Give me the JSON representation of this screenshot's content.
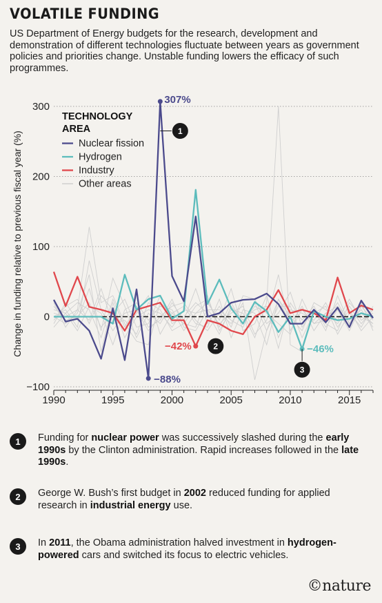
{
  "title": "VOLATILE FUNDING",
  "subtitle": "US Department of Energy budgets for the research, development and demonstration of different technologies fluctuate between years as government policies and priorities change. Unstable funding lowers the efficacy of such programmes.",
  "chart_data": {
    "type": "line",
    "ylabel": "Change in funding relative to previous fiscal year (%)",
    "ylim": [
      -100,
      310
    ],
    "xlim": [
      1990,
      2017
    ],
    "yticks": [
      -100,
      0,
      100,
      200,
      300
    ],
    "yticklabels": [
      "−100",
      "0",
      "100",
      "200",
      "300"
    ],
    "xticks": [
      1990,
      1995,
      2000,
      2005,
      2010,
      2015
    ],
    "grid": "dotted horizontal",
    "legend": {
      "title_line1": "TECHNOLOGY",
      "title_line2": "AREA",
      "placement": "top-left"
    },
    "series": [
      {
        "name": "Nuclear fission",
        "color": "#4b4a8c",
        "x": [
          1990,
          1991,
          1992,
          1993,
          1994,
          1995,
          1996,
          1997,
          1998,
          1999,
          2000,
          2001,
          2002,
          2003,
          2004,
          2005,
          2006,
          2007,
          2008,
          2009,
          2010,
          2011,
          2012,
          2013,
          2014,
          2015,
          2016,
          2017
        ],
        "y": [
          24,
          -7,
          -3,
          -20,
          -60,
          12,
          -62,
          39,
          -88,
          307,
          58,
          22,
          143,
          0,
          5,
          20,
          24,
          25,
          33,
          18,
          -10,
          -10,
          10,
          -8,
          13,
          -15,
          23,
          -2
        ]
      },
      {
        "name": "Hydrogen",
        "color": "#5cbcbc",
        "x": [
          1990,
          1991,
          1992,
          1993,
          1994,
          1995,
          1996,
          1997,
          1998,
          1999,
          2000,
          2001,
          2002,
          2003,
          2004,
          2005,
          2006,
          2007,
          2008,
          2009,
          2010,
          2011,
          2012,
          2013,
          2014,
          2015,
          2016,
          2017
        ],
        "y": [
          0,
          0,
          0,
          0,
          0,
          -10,
          60,
          10,
          25,
          30,
          -3,
          8,
          181,
          18,
          53,
          12,
          -10,
          21,
          8,
          -22,
          0,
          -46,
          8,
          0,
          -5,
          -3,
          5,
          0
        ]
      },
      {
        "name": "Industry",
        "color": "#e0474c",
        "x": [
          1990,
          1991,
          1992,
          1993,
          1994,
          1995,
          1996,
          1997,
          1998,
          1999,
          2000,
          2001,
          2002,
          2003,
          2004,
          2005,
          2006,
          2007,
          2008,
          2009,
          2010,
          2011,
          2012,
          2013,
          2014,
          2015,
          2016,
          2017
        ],
        "y": [
          64,
          15,
          57,
          14,
          10,
          5,
          -20,
          10,
          15,
          20,
          -5,
          -5,
          -42,
          -5,
          -10,
          -20,
          -25,
          0,
          10,
          38,
          5,
          10,
          5,
          -5,
          56,
          5,
          16,
          10
        ]
      }
    ],
    "other_areas": {
      "name": "Other areas",
      "color": "#cfcfcf",
      "series": [
        [
          5,
          0,
          10,
          128,
          20,
          30,
          -10,
          -35,
          -40,
          20,
          5,
          -10,
          -15,
          30,
          -20,
          10,
          5,
          -30,
          20,
          300,
          -40,
          -50,
          10,
          -20,
          30,
          -10,
          5,
          -10
        ],
        [
          -10,
          20,
          -5,
          40,
          -20,
          55,
          15,
          -30,
          5,
          -10,
          20,
          -5,
          40,
          -10,
          15,
          -15,
          30,
          25,
          -10,
          5,
          35,
          -15,
          10,
          -10,
          -20,
          20,
          0,
          -10
        ],
        [
          0,
          -10,
          5,
          60,
          -50,
          20,
          -30,
          0,
          10,
          5,
          -15,
          10,
          5,
          20,
          -5,
          40,
          -20,
          -10,
          30,
          -30,
          10,
          5,
          -5,
          20,
          -15,
          10,
          -20,
          0
        ],
        [
          10,
          5,
          -20,
          15,
          5,
          -40,
          10,
          20,
          -5,
          15,
          10,
          -20,
          5,
          10,
          -10,
          5,
          15,
          -25,
          -5,
          60,
          -20,
          10,
          -10,
          5,
          15,
          -5,
          10,
          -15
        ],
        [
          -5,
          15,
          25,
          -10,
          30,
          10,
          -20,
          5,
          30,
          -25,
          5,
          15,
          -10,
          -15,
          25,
          -30,
          10,
          5,
          -40,
          25,
          0,
          -20,
          20,
          10,
          -5,
          25,
          -5,
          5
        ],
        [
          15,
          -5,
          0,
          20,
          -15,
          5,
          25,
          -15,
          -10,
          30,
          -10,
          0,
          20,
          5,
          -25,
          15,
          -5,
          10,
          15,
          -45,
          20,
          -5,
          15,
          -15,
          10,
          -20,
          15,
          -5
        ],
        [
          0,
          10,
          -15,
          80,
          10,
          -20,
          5,
          10,
          -20,
          0,
          15,
          20,
          -5,
          -20,
          5,
          -10,
          20,
          -90,
          -20,
          25,
          -10,
          15,
          -20,
          5,
          -10,
          15,
          -10,
          10
        ],
        [
          20,
          -15,
          10,
          -5,
          40,
          -10,
          -5,
          -25,
          20,
          10,
          -20,
          -10,
          15,
          25,
          -15,
          20,
          -10,
          15,
          5,
          -10,
          -25,
          25,
          -10,
          -5,
          20,
          -10,
          20,
          -20
        ],
        [
          -15,
          5,
          20,
          10,
          -30,
          25,
          -15,
          15,
          -15,
          -5,
          25,
          -15,
          -20,
          10,
          10,
          -5,
          -15,
          20,
          -20,
          15,
          15,
          -30,
          5,
          15,
          -25,
          5,
          -15,
          15
        ]
      ]
    },
    "annotations": [
      {
        "marker": "1",
        "label": "307%",
        "x": 1999,
        "y": 307,
        "series": "Nuclear fission"
      },
      {
        "label": "−88%",
        "x": 1998,
        "y": -88,
        "series": "Nuclear fission"
      },
      {
        "marker": "2",
        "label": "−42%",
        "x": 2002,
        "y": -42,
        "series": "Industry"
      },
      {
        "marker": "3",
        "label": "−46%",
        "x": 2011,
        "y": -46,
        "series": "Hydrogen"
      }
    ]
  },
  "notes": [
    {
      "num": "1",
      "html": "Funding for <b>nuclear power</b> was successively slashed during the <b>early 1990s</b> by the Clinton administration. Rapid increases followed in the <b>late 1990s</b>."
    },
    {
      "num": "2",
      "html": "George W. Bush’s first budget in <b>2002</b> reduced funding for applied research in <b>industrial energy</b> use."
    },
    {
      "num": "3",
      "html": "In <b>2011</b>, the Obama administration halved investment in <b>hydrogen-powered</b> cars and switched its focus to electric vehicles."
    }
  ],
  "logo": "©nature"
}
